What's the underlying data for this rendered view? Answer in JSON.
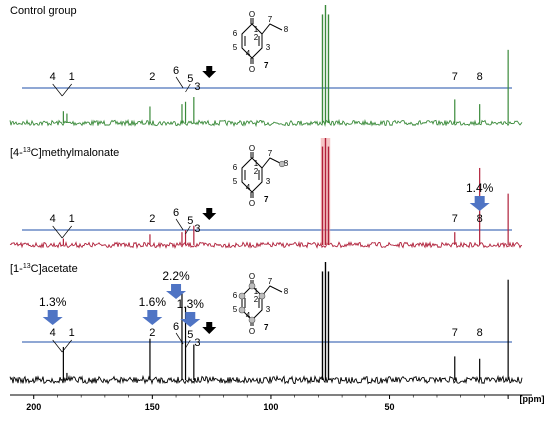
{
  "chart_data": {
    "type": "line",
    "xlabel": "[ppm]",
    "x_reversed": true,
    "xlim": [
      210,
      -5
    ],
    "x_ticks": [
      200,
      150,
      100,
      50,
      0
    ],
    "x_tick_labels": [
      "200",
      "150",
      "100",
      "50",
      ""
    ],
    "panels": [
      {
        "label": "Control group",
        "color": "#3a8a3a",
        "peaks": [
          {
            "ppm": 187.5,
            "height": 0.1
          },
          {
            "ppm": 186.0,
            "height": 0.08
          },
          {
            "ppm": 151.0,
            "height": 0.14
          },
          {
            "ppm": 137.5,
            "height": 0.16
          },
          {
            "ppm": 136.0,
            "height": 0.18
          },
          {
            "ppm": 132.5,
            "height": 0.22
          },
          {
            "ppm": 77.0,
            "height": 1.0
          },
          {
            "ppm": 22.5,
            "height": 0.2
          },
          {
            "ppm": 12.0,
            "height": 0.16
          },
          {
            "ppm": 0.0,
            "height": 0.62
          }
        ],
        "peak_labels": [
          "4",
          "1",
          "2",
          "6",
          "5",
          "3",
          "7",
          "8"
        ],
        "percentages": []
      },
      {
        "label_prefix": "[4-",
        "label_sup": "13",
        "label_suffix": "C]methylmalonate",
        "color": "#b0203a",
        "peaks": [
          {
            "ppm": 187.5,
            "height": 0.06
          },
          {
            "ppm": 151.0,
            "height": 0.1
          },
          {
            "ppm": 137.5,
            "height": 0.12
          },
          {
            "ppm": 136.0,
            "height": 0.14
          },
          {
            "ppm": 132.5,
            "height": 0.18
          },
          {
            "ppm": 77.0,
            "height": 1.0
          },
          {
            "ppm": 22.5,
            "height": 0.12
          },
          {
            "ppm": 12.0,
            "height": 0.72
          },
          {
            "ppm": 0.0,
            "height": 0.48
          }
        ],
        "peak_labels": [
          "4",
          "1",
          "2",
          "6",
          "5",
          "3",
          "7",
          "8"
        ],
        "percentages": [
          {
            "atom": "8",
            "value": "1.4%"
          }
        ]
      },
      {
        "label_prefix": "[1-",
        "label_sup": "13",
        "label_suffix": "C]acetate",
        "color": "#000000",
        "peaks": [
          {
            "ppm": 187.5,
            "height": 0.28
          },
          {
            "ppm": 186.0,
            "height": 0.06
          },
          {
            "ppm": 151.0,
            "height": 0.35
          },
          {
            "ppm": 137.5,
            "height": 0.75
          },
          {
            "ppm": 136.0,
            "height": 0.62
          },
          {
            "ppm": 132.5,
            "height": 0.3
          },
          {
            "ppm": 77.0,
            "height": 1.0
          },
          {
            "ppm": 22.5,
            "height": 0.2
          },
          {
            "ppm": 12.0,
            "height": 0.18
          },
          {
            "ppm": 0.0,
            "height": 0.85
          }
        ],
        "peak_labels": [
          "4",
          "1",
          "2",
          "6",
          "5",
          "3",
          "7",
          "8"
        ],
        "percentages": [
          {
            "atom": "4",
            "value": "1.3%"
          },
          {
            "atom": "2",
            "value": "1.6%"
          },
          {
            "atom": "6",
            "value": "2.2%"
          },
          {
            "atom": "5",
            "value": "1.3%"
          }
        ]
      }
    ],
    "structure_atoms": [
      "1",
      "2",
      "3",
      "4",
      "5",
      "6",
      "7",
      "8"
    ],
    "structure_oxygen": "O",
    "structure_oxygen_label": "7"
  },
  "colors": {
    "reference_line": "#1f4fa8",
    "arrow_blue": "#4f74c4",
    "arrow_black": "#000000",
    "chloroform_peak_fill": "#f0a0a0"
  }
}
